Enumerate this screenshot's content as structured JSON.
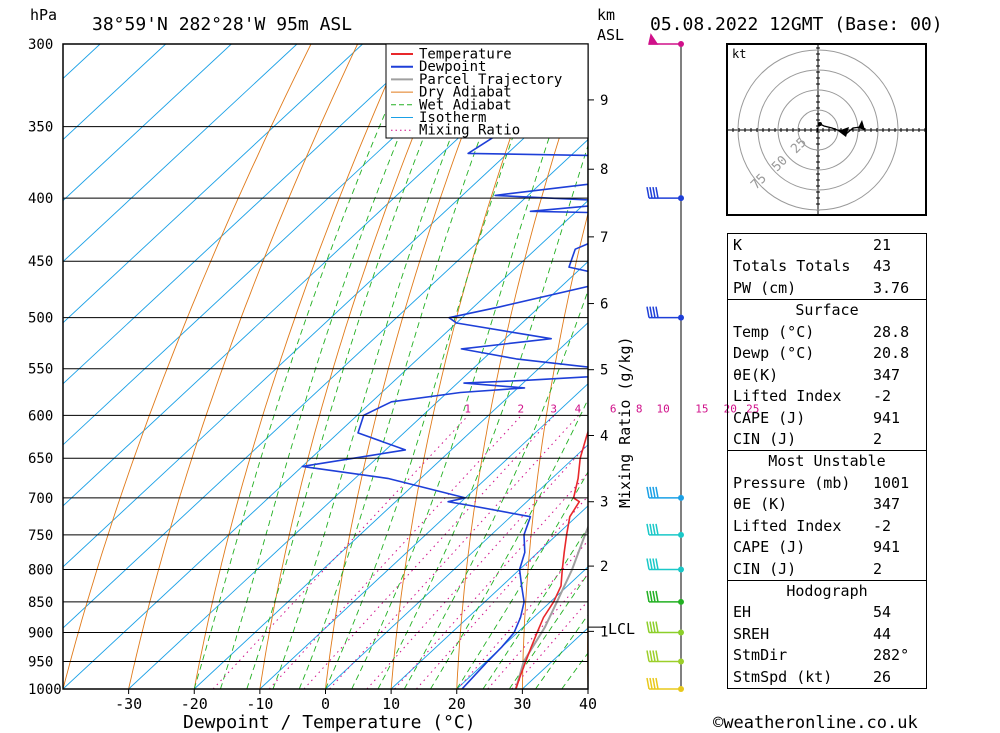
{
  "header": {
    "hpa_unit": "hPa",
    "location": "38°59'N 282°28'W 95m ASL",
    "km_unit": "km",
    "asl_unit": "ASL",
    "date": "05.08.2022 12GMT (Base: 00)"
  },
  "footer": {
    "credit": "©weatheronline.co.uk"
  },
  "colors": {
    "temperature": "#e8282b",
    "dewpoint": "#1e3fd8",
    "parcel": "#a0a0a0",
    "dry_adiabat": "#e07a1a",
    "wet_adiabat": "#22b022",
    "isotherm": "#1aa0e6",
    "mixing_ratio": "#d0108a"
  },
  "chart_data": {
    "type": "line",
    "title": "",
    "xlabel": "Dewpoint / Temperature (°C)",
    "ylabel": "hPa",
    "y2label": "Mixing Ratio (g/kg)",
    "xlim": [
      -40,
      40
    ],
    "ylim": [
      1000,
      300
    ],
    "y_scale": "log",
    "grid": true,
    "legend_position": "top-right",
    "x_ticks": [
      -30,
      -20,
      -10,
      0,
      10,
      20,
      30,
      40
    ],
    "pressure_levels": [
      300,
      350,
      400,
      450,
      500,
      550,
      600,
      650,
      700,
      750,
      800,
      850,
      900,
      950,
      1000
    ],
    "height_km_ticks": [
      {
        "km": 1,
        "p": 898
      },
      {
        "km": 2,
        "p": 795
      },
      {
        "km": 3,
        "p": 705
      },
      {
        "km": 4,
        "p": 623
      },
      {
        "km": 5,
        "p": 551
      },
      {
        "km": 6,
        "p": 487
      },
      {
        "km": 7,
        "p": 430
      },
      {
        "km": 8,
        "p": 379
      },
      {
        "km": 9,
        "p": 333
      }
    ],
    "lcl": {
      "label": "LCL",
      "p": 891
    },
    "mixing_ratio_labels": [
      "1",
      "2",
      "3",
      "4",
      "6",
      "8",
      "10",
      "15",
      "20",
      "25"
    ],
    "legend": [
      "Temperature",
      "Dewpoint",
      "Parcel Trajectory",
      "Dry Adiabat",
      "Wet Adiabat",
      "Isotherm",
      "Mixing Ratio"
    ],
    "series": [
      {
        "name": "Temperature",
        "points": [
          [
            29,
            1000
          ],
          [
            27.5,
            975
          ],
          [
            26,
            950
          ],
          [
            24.5,
            925
          ],
          [
            23,
            900
          ],
          [
            21.5,
            875
          ],
          [
            20.5,
            850
          ],
          [
            19,
            825
          ],
          [
            16.5,
            800
          ],
          [
            14,
            775
          ],
          [
            11.5,
            750
          ],
          [
            9,
            725
          ],
          [
            8,
            705
          ],
          [
            6.5,
            700
          ],
          [
            4,
            675
          ],
          [
            1,
            650
          ],
          [
            -1.5,
            625
          ],
          [
            -4,
            600
          ],
          [
            -6.5,
            575
          ],
          [
            -9,
            550
          ],
          [
            -10.5,
            525
          ],
          [
            -13,
            500
          ],
          [
            -16.5,
            475
          ],
          [
            -21,
            450
          ],
          [
            -25,
            425
          ],
          [
            -30,
            400
          ],
          [
            -33,
            385
          ],
          [
            -38,
            360
          ],
          [
            -41,
            350
          ],
          [
            -47,
            325
          ],
          [
            -53,
            300
          ]
        ]
      },
      {
        "name": "Dewpoint",
        "points": [
          [
            20.8,
            1000
          ],
          [
            20.5,
            975
          ],
          [
            20.2,
            950
          ],
          [
            20,
            925
          ],
          [
            19.5,
            900
          ],
          [
            18,
            875
          ],
          [
            16,
            850
          ],
          [
            13,
            825
          ],
          [
            10,
            800
          ],
          [
            8,
            775
          ],
          [
            5,
            750
          ],
          [
            3,
            725
          ],
          [
            -8,
            710
          ],
          [
            -12,
            705
          ],
          [
            -10,
            700
          ],
          [
            -25,
            675
          ],
          [
            -40,
            660
          ],
          [
            -27,
            640
          ],
          [
            -37,
            620
          ],
          [
            -39,
            600
          ],
          [
            -37,
            585
          ],
          [
            -28,
            575
          ],
          [
            -19,
            570
          ],
          [
            -29,
            565
          ],
          [
            -20,
            562
          ],
          [
            -3,
            555
          ],
          [
            -25,
            540
          ],
          [
            -35,
            530
          ],
          [
            -23,
            520
          ],
          [
            -40,
            505
          ],
          [
            -42,
            500
          ],
          [
            -36,
            490
          ],
          [
            -25,
            470
          ],
          [
            -27,
            460
          ],
          [
            -32,
            455
          ],
          [
            -34,
            440
          ],
          [
            -28,
            415
          ],
          [
            -27,
            412
          ],
          [
            -47,
            410
          ],
          [
            -33,
            403
          ],
          [
            -55,
            398
          ],
          [
            -43,
            390
          ],
          [
            -37,
            386
          ],
          [
            -30,
            382
          ],
          [
            -34,
            376
          ],
          [
            -38,
            370
          ],
          [
            -66,
            368
          ],
          [
            -64,
            350
          ],
          [
            -70,
            320
          ],
          [
            -66,
            300
          ]
        ]
      },
      {
        "name": "Parcel Trajectory",
        "points": [
          [
            29,
            1000
          ],
          [
            25.7,
            950
          ],
          [
            23.3,
            891
          ],
          [
            21,
            850
          ],
          [
            18,
            800
          ],
          [
            14.3,
            750
          ],
          [
            10.5,
            700
          ],
          [
            6,
            650
          ],
          [
            1.5,
            600
          ],
          [
            -3.5,
            550
          ],
          [
            -9,
            500
          ],
          [
            -15.5,
            450
          ],
          [
            -23,
            400
          ],
          [
            -32,
            350
          ],
          [
            -42,
            300
          ]
        ]
      }
    ]
  },
  "indices": {
    "rows": [
      {
        "label": "K",
        "value": "21"
      },
      {
        "label": "Totals Totals",
        "value": "43"
      },
      {
        "label": "PW (cm)",
        "value": "3.76"
      }
    ]
  },
  "surface": {
    "title": "Surface",
    "rows": [
      {
        "label": "Temp (°C)",
        "value": "28.8"
      },
      {
        "label": "Dewp (°C)",
        "value": "20.8"
      },
      {
        "label": "θE(K)",
        "value": "347"
      },
      {
        "label": "Lifted Index",
        "value": "-2"
      },
      {
        "label": "CAPE (J)",
        "value": "941"
      },
      {
        "label": "CIN (J)",
        "value": "2"
      }
    ]
  },
  "most_unstable": {
    "title": "Most Unstable",
    "rows": [
      {
        "label": "Pressure (mb)",
        "value": "1001"
      },
      {
        "label": "θE (K)",
        "value": "347"
      },
      {
        "label": "Lifted Index",
        "value": "-2"
      },
      {
        "label": "CAPE (J)",
        "value": "941"
      },
      {
        "label": "CIN (J)",
        "value": "2"
      }
    ]
  },
  "hodograph_stats": {
    "title": "Hodograph",
    "rows": [
      {
        "label": "EH",
        "value": "54"
      },
      {
        "label": "SREH",
        "value": "44"
      },
      {
        "label": "StmDir",
        "value": "282°"
      },
      {
        "label": "StmSpd (kt)",
        "value": "26"
      }
    ]
  },
  "hodograph": {
    "unit": "kt",
    "rings": [
      "25",
      "50",
      "75"
    ]
  },
  "wind_barbs": [
    {
      "p": 300,
      "color": "#d0108a",
      "type": "pennant"
    },
    {
      "p": 400,
      "color": "#1e3fd8",
      "type": "barb"
    },
    {
      "p": 500,
      "color": "#1e3fd8",
      "type": "barb"
    },
    {
      "p": 700,
      "color": "#1aa0e6",
      "type": "barb"
    },
    {
      "p": 750,
      "color": "#1ac8c8",
      "type": "barb"
    },
    {
      "p": 800,
      "color": "#1ac8c8",
      "type": "barb"
    },
    {
      "p": 850,
      "color": "#22b022",
      "type": "barb"
    },
    {
      "p": 900,
      "color": "#8ccf2a",
      "type": "barb"
    },
    {
      "p": 950,
      "color": "#9ccf2a",
      "type": "barb"
    },
    {
      "p": 1000,
      "color": "#e8c81a",
      "type": "barb"
    }
  ]
}
